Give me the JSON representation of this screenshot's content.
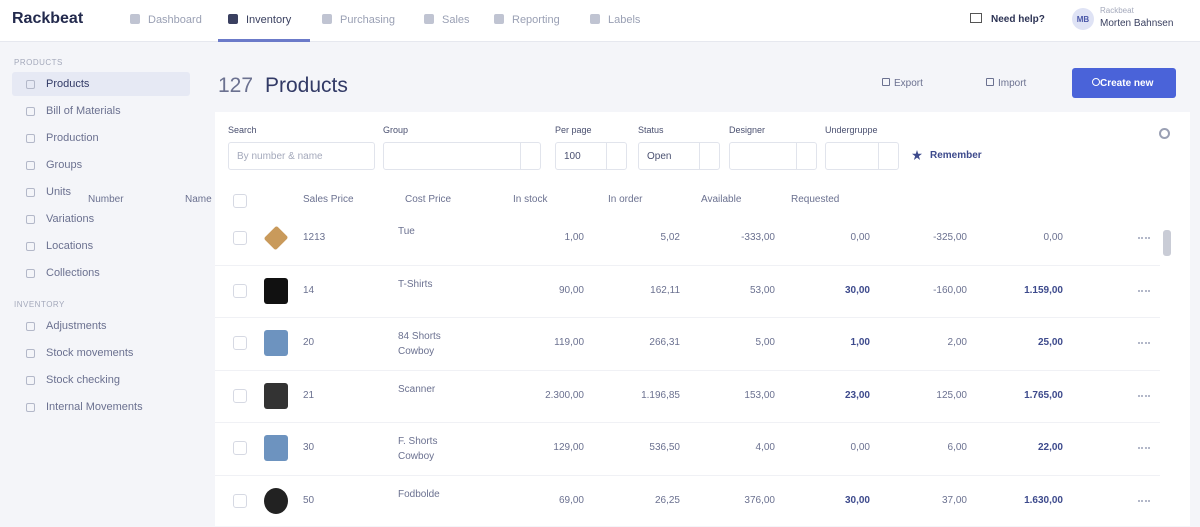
{
  "topbar": {
    "logo": "Rackbeat",
    "nav": [
      "Dashboard",
      "Inventory",
      "Purchasing",
      "Sales",
      "Reporting",
      "Labels"
    ],
    "help": "Need help?",
    "avatar": "MB",
    "account": "Rackbeat",
    "user": "Morten Bahnsen"
  },
  "sidebar": {
    "sections": [
      {
        "title": "PRODUCTS",
        "items": [
          "Products",
          "Bill of Materials",
          "Production",
          "Groups",
          "Units",
          "Variations",
          "Locations",
          "Collections"
        ]
      },
      {
        "title": "INVENTORY",
        "items": [
          "Adjustments",
          "Stock movements",
          "Stock checking",
          "Internal Movements"
        ]
      }
    ]
  },
  "header": {
    "count": "127",
    "title": "Products",
    "buttons": [
      "Export",
      "Import",
      "Create new"
    ]
  },
  "filters": [
    {
      "label": "Search",
      "value": "By number & name"
    },
    {
      "label": "Group",
      "value": ""
    },
    {
      "label": "Per page",
      "value": "100"
    },
    {
      "label": "Status",
      "value": "Open"
    },
    {
      "label": "Designer",
      "value": ""
    },
    {
      "label": "Undergruppe",
      "value": ""
    }
  ],
  "remember": "Remember",
  "table": {
    "columns": [
      "Number",
      "Name",
      "Sales Price",
      "Cost Price",
      "In stock",
      "In order",
      "Available",
      "Requested"
    ],
    "rows": [
      [
        "1213",
        "Tue",
        "1,00",
        "5,02",
        "-333,00",
        "0,00",
        "-325,00",
        "0,00"
      ],
      [
        "14",
        "T-Shirts",
        "90,00",
        "162,11",
        "53,00",
        "30,00",
        "-160,00",
        "1.159,00"
      ],
      [
        "20",
        "84 Shorts Cowboy",
        "119,00",
        "266,31",
        "5,00",
        "1,00",
        "2,00",
        "25,00"
      ],
      [
        "21",
        "Scanner",
        "2.300,00",
        "1.196,85",
        "153,00",
        "23,00",
        "125,00",
        "1.765,00"
      ],
      [
        "30",
        "F. Shorts Cowboy",
        "129,00",
        "536,50",
        "4,00",
        "0,00",
        "6,00",
        "22,00"
      ],
      [
        "50",
        "Fodbolde",
        "69,00",
        "26,25",
        "376,00",
        "30,00",
        "37,00",
        "1.630,00"
      ]
    ]
  }
}
